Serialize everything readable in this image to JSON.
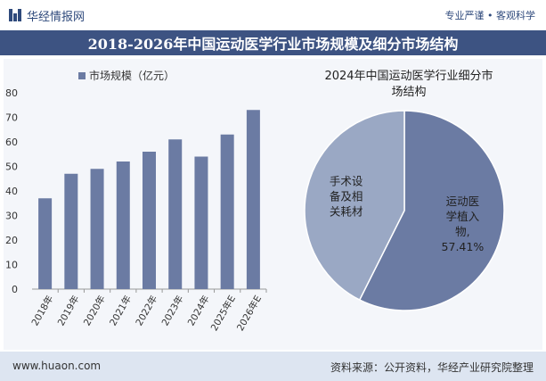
{
  "header": {
    "brand": "华经情报网",
    "tagline": "专业严谨 • 客观科学",
    "title": "2018-2026年中国运动医学行业市场规模及细分市场结构"
  },
  "footer": {
    "url": "www.huaon.com",
    "source": "资料来源：公开资料，华经产业研究院整理"
  },
  "chart_data": [
    {
      "type": "bar",
      "legend": "市场规模（亿元）",
      "categories": [
        "2018年",
        "2019年",
        "2020年",
        "2021年",
        "2022年",
        "2023年",
        "2024年",
        "2025年E",
        "2026年E"
      ],
      "values": [
        37,
        47,
        49,
        52,
        56,
        61,
        54,
        63,
        73
      ],
      "ylim": [
        0,
        80
      ],
      "yticks": [
        0,
        10,
        20,
        30,
        40,
        50,
        60,
        70,
        80
      ],
      "grid": false,
      "color": "#6b7ba3"
    },
    {
      "type": "pie",
      "title_lines": [
        "2024年中国运动医学行业细分市",
        "场结构"
      ],
      "slices": [
        {
          "label_lines": [
            "运动医",
            "学植入",
            "物,",
            "57.41%"
          ],
          "value": 57.41,
          "color": "#6b7ba3"
        },
        {
          "label_lines": [
            "手术设",
            "备及相",
            "关耗材"
          ],
          "value": 42.59,
          "color": "#9aa8c4"
        }
      ]
    }
  ]
}
